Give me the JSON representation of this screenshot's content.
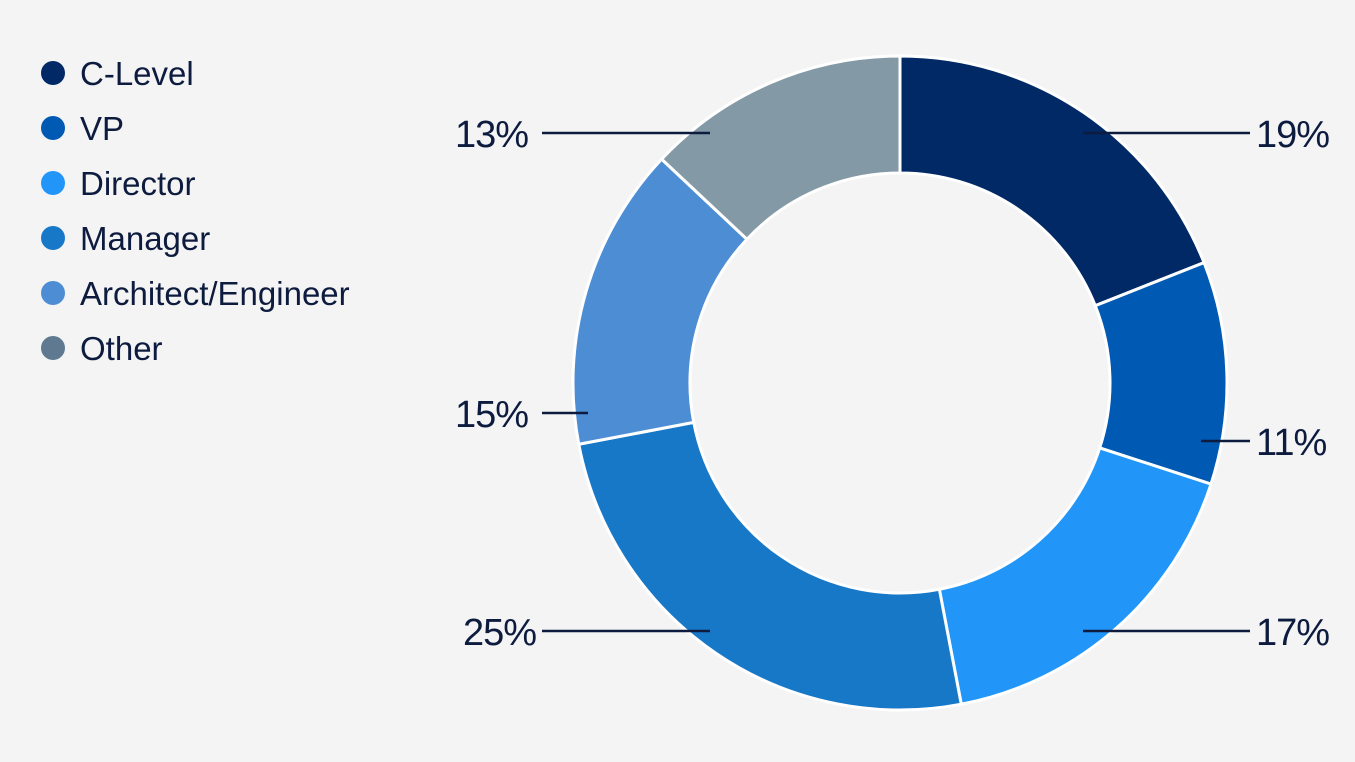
{
  "chart_data": {
    "type": "pie",
    "variant": "donut",
    "legend_position": "top-left",
    "categories": [
      "C-Level",
      "VP",
      "Director",
      "Manager",
      "Architect/Engineer",
      "Other"
    ],
    "values": [
      19,
      11,
      17,
      25,
      15,
      13
    ],
    "labels": [
      "19%",
      "11%",
      "17%",
      "25%",
      "15%",
      "13%"
    ],
    "colors": [
      "#002966",
      "#0059b3",
      "#2196f8",
      "#1878c8",
      "#4c8dd4",
      "#8499a6"
    ],
    "legend_marker_colors": [
      "#002966",
      "#0059b3",
      "#2196f8",
      "#1878c8",
      "#4c8dd4",
      "#5f7a90"
    ]
  }
}
